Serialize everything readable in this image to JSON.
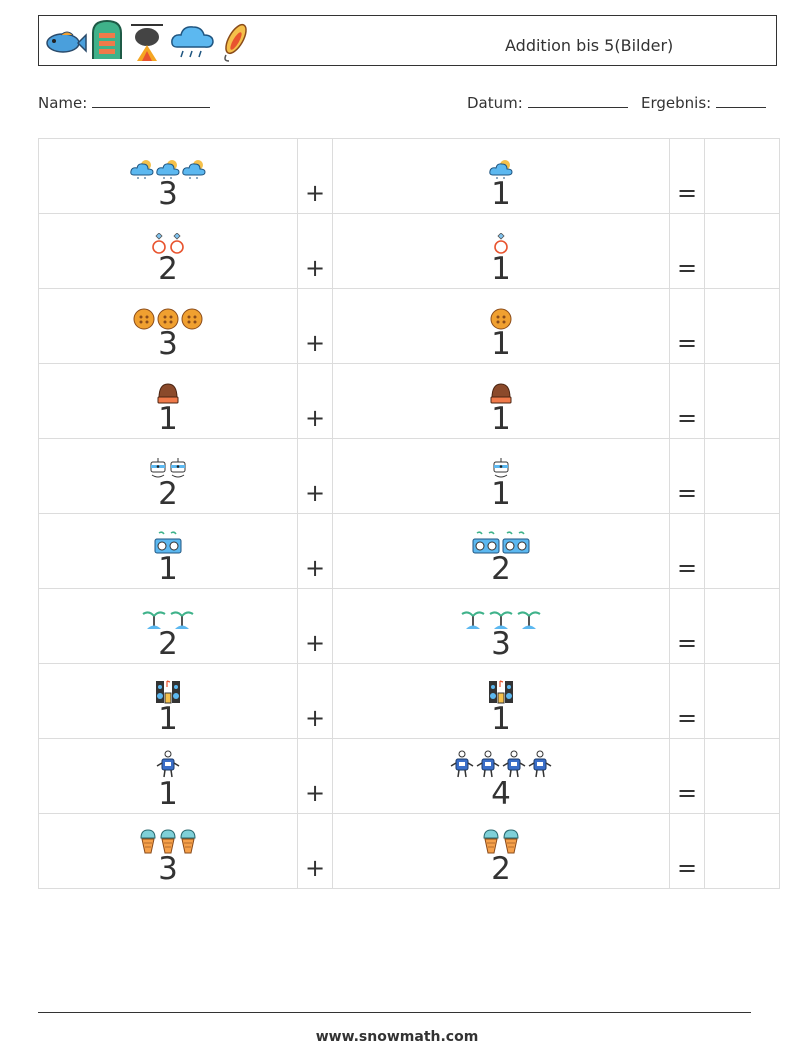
{
  "header": {
    "title": "Addition bis 5(Bilder)",
    "icons": [
      "fish-icon",
      "life-raft-icon",
      "campfire-pot-icon",
      "rain-cloud-icon",
      "fishing-lure-icon"
    ]
  },
  "info": {
    "name_label": "Name:",
    "date_label": "Datum:",
    "result_label": "Ergebnis:"
  },
  "operators": {
    "plus": "+",
    "equals": "="
  },
  "problems": [
    {
      "a": "3",
      "a_icon": "weather-cloud-icon",
      "b": "1",
      "b_icon": "weather-cloud-icon"
    },
    {
      "a": "2",
      "a_icon": "ring-icon",
      "b": "1",
      "b_icon": "ring-icon"
    },
    {
      "a": "3",
      "a_icon": "button-icon",
      "b": "1",
      "b_icon": "button-icon"
    },
    {
      "a": "1",
      "a_icon": "hat-icon",
      "b": "1",
      "b_icon": "hat-icon"
    },
    {
      "a": "2",
      "a_icon": "robot-icon",
      "b": "1",
      "b_icon": "robot-icon"
    },
    {
      "a": "1",
      "a_icon": "boombox-icon",
      "b": "2",
      "b_icon": "boombox-icon"
    },
    {
      "a": "2",
      "a_icon": "island-icon",
      "b": "3",
      "b_icon": "island-icon"
    },
    {
      "a": "1",
      "a_icon": "speakers-icon",
      "b": "1",
      "b_icon": "speakers-icon"
    },
    {
      "a": "1",
      "a_icon": "robot-toy-icon",
      "b": "4",
      "b_icon": "robot-toy-icon"
    },
    {
      "a": "3",
      "a_icon": "ice-cream-icon",
      "b": "2",
      "b_icon": "ice-cream-icon"
    }
  ],
  "footer": {
    "url": "www.snowmath.com"
  }
}
